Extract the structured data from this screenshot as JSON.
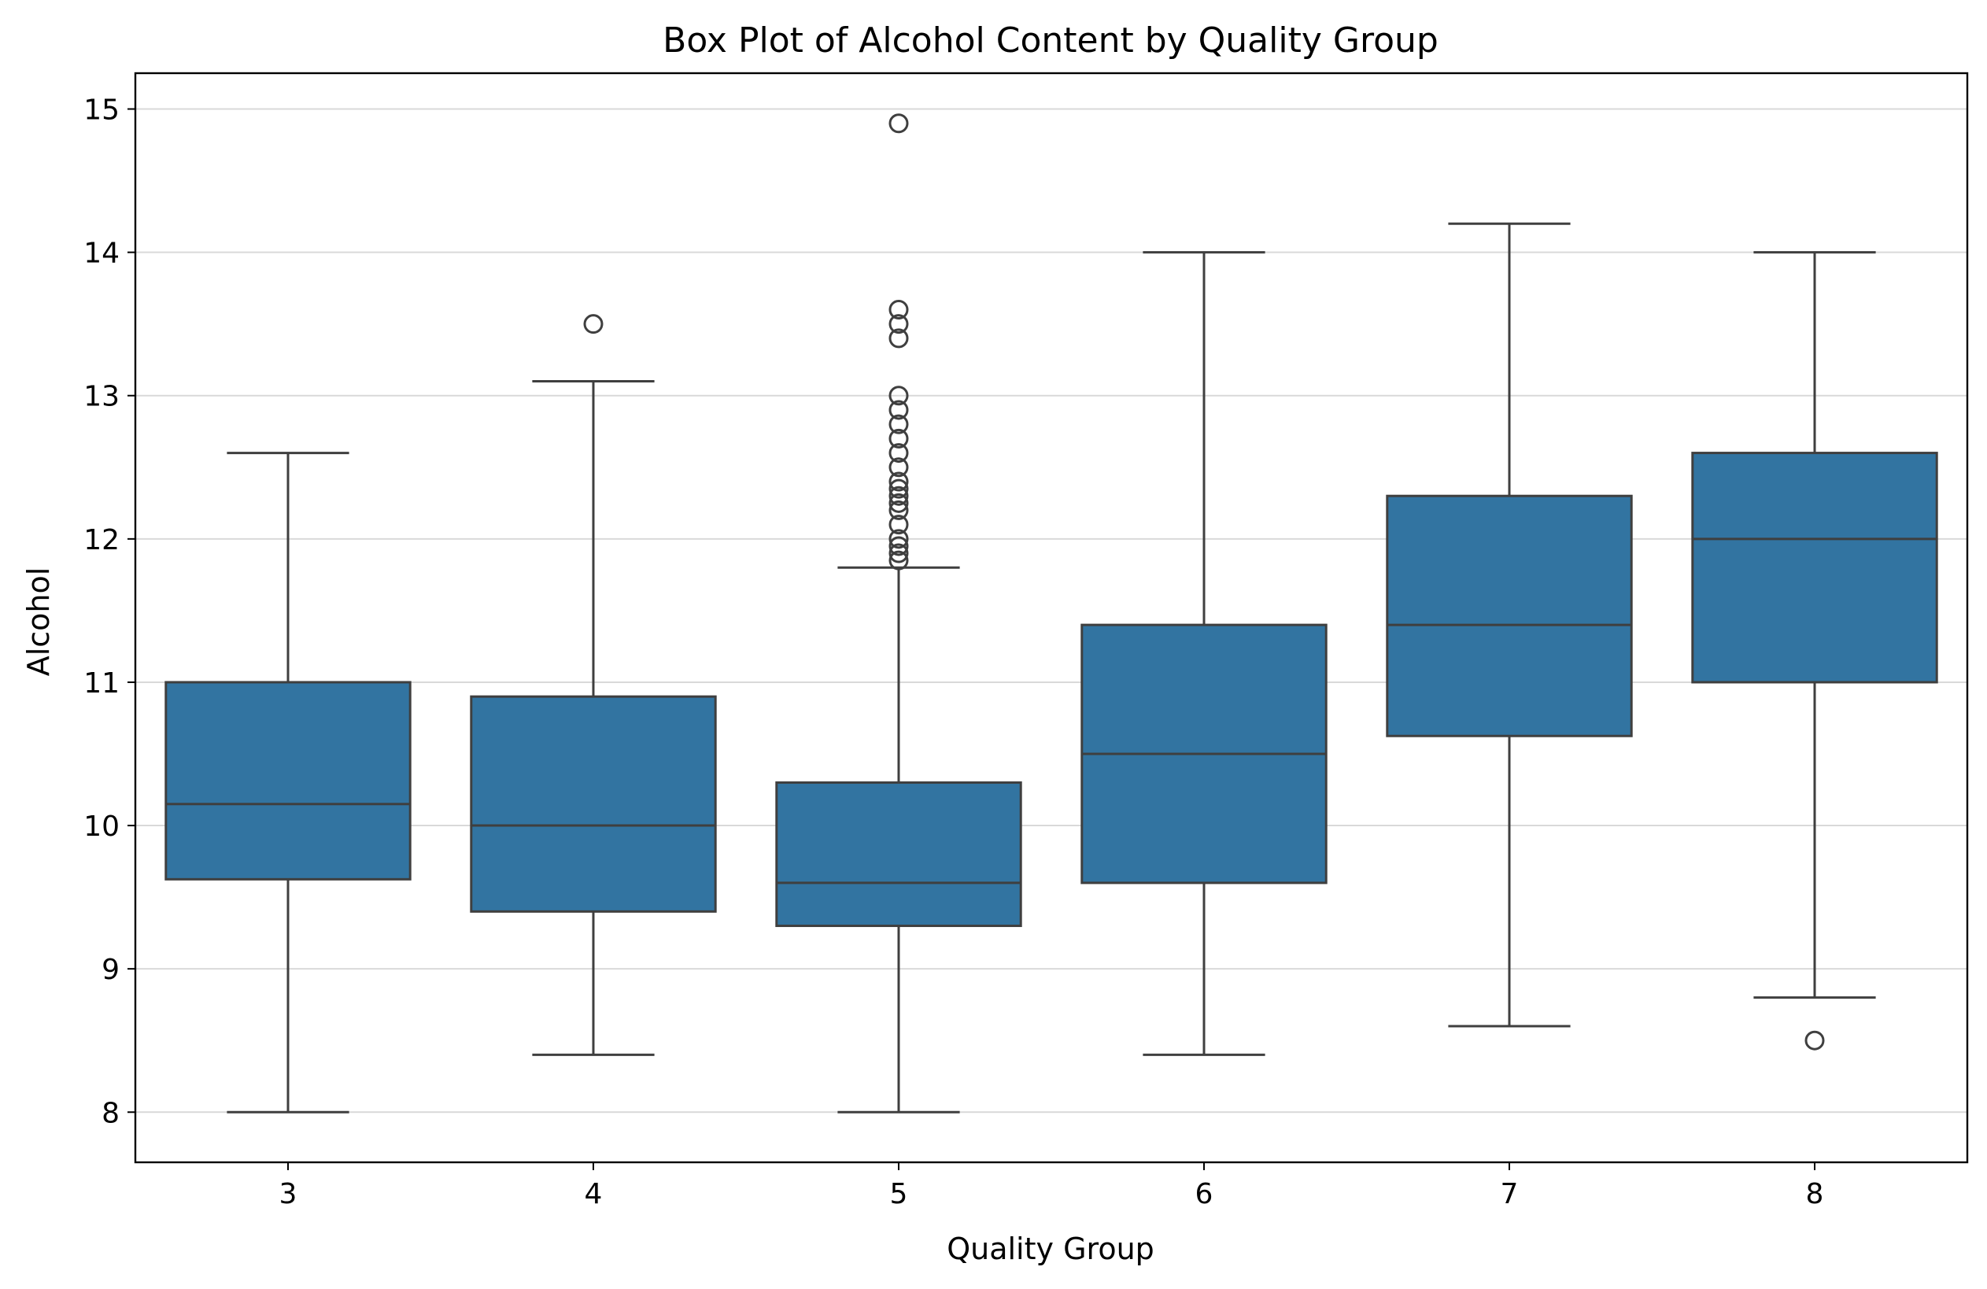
{
  "chart_data": {
    "type": "box",
    "title": "Box Plot of Alcohol Content by Quality Group",
    "xlabel": "Quality Group",
    "ylabel": "Alcohol",
    "categories": [
      "3",
      "4",
      "5",
      "6",
      "7",
      "8"
    ],
    "ylim": [
      7.65,
      15.25
    ],
    "yticks": [
      8,
      9,
      10,
      11,
      12,
      13,
      14,
      15
    ],
    "grid": "horizontal",
    "box_color": "#3274a1",
    "line_color": "#3f3f3f",
    "grid_color": "#d9d9d9",
    "boxes": [
      {
        "category": "3",
        "whisker_low": 8.0,
        "q1": 9.625,
        "median": 10.15,
        "q3": 11.0,
        "whisker_high": 12.6,
        "outliers": []
      },
      {
        "category": "4",
        "whisker_low": 8.4,
        "q1": 9.4,
        "median": 10.0,
        "q3": 10.9,
        "whisker_high": 13.1,
        "outliers": [
          13.5
        ]
      },
      {
        "category": "5",
        "whisker_low": 8.0,
        "q1": 9.3,
        "median": 9.6,
        "q3": 10.3,
        "whisker_high": 11.8,
        "outliers": [
          11.85,
          11.9,
          11.95,
          12.0,
          12.1,
          12.2,
          12.25,
          12.3,
          12.35,
          12.4,
          12.5,
          12.6,
          12.7,
          12.8,
          12.9,
          13.0,
          13.4,
          13.5,
          13.6,
          14.9
        ]
      },
      {
        "category": "6",
        "whisker_low": 8.4,
        "q1": 9.6,
        "median": 10.5,
        "q3": 11.4,
        "whisker_high": 14.0,
        "outliers": []
      },
      {
        "category": "7",
        "whisker_low": 8.6,
        "q1": 10.625,
        "median": 11.4,
        "q3": 12.3,
        "whisker_high": 14.2,
        "outliers": []
      },
      {
        "category": "8",
        "whisker_low": 8.8,
        "q1": 11.0,
        "median": 12.0,
        "q3": 12.6,
        "whisker_high": 14.0,
        "outliers": [
          8.5
        ]
      }
    ]
  }
}
